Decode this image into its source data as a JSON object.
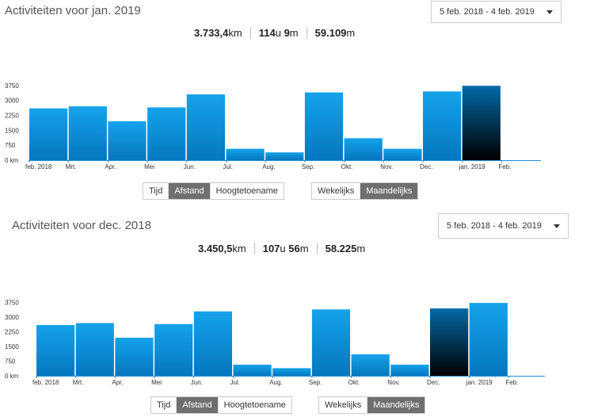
{
  "panels": [
    {
      "title": "Activiteiten voor jan. 2019",
      "date_range": "5 feb. 2018 - 4 feb. 2019",
      "stats": [
        {
          "value": "3.733,4",
          "unit": "km"
        },
        {
          "value": "114",
          "unit": "u",
          "value2": "9",
          "unit2": "m"
        },
        {
          "value": "59.109",
          "unit": "m"
        }
      ],
      "metric_buttons": [
        "Tijd",
        "Afstand",
        "Hoogtetoename"
      ],
      "metric_active": 1,
      "period_buttons": [
        "Wekelijks",
        "Maandelijks"
      ],
      "period_active": 1
    },
    {
      "title": "Activiteiten voor dec. 2018",
      "date_range": "5 feb. 2018 - 4 feb. 2019",
      "stats": [
        {
          "value": "3.450,5",
          "unit": "km"
        },
        {
          "value": "107",
          "unit": "u",
          "value2": "56",
          "unit2": "m"
        },
        {
          "value": "58.225",
          "unit": "m"
        }
      ],
      "metric_buttons": [
        "Tijd",
        "Afstand",
        "Hoogtetoename"
      ],
      "metric_active": 1,
      "period_buttons": [
        "Wekelijks",
        "Maandelijks"
      ],
      "period_active": 1
    }
  ],
  "colors": {
    "bar": "#0b8fd6",
    "bar_gradient_top": "#15a3ea",
    "bar_gradient_bottom": "#0577bf",
    "bar_selected_top": "#046aa8",
    "bar_selected_bottom": "#000000",
    "axis": "#1a8fd1",
    "button_active_bg": "#6f6f6f"
  },
  "icons": {
    "date_range_dropdown": "caret-down-icon"
  },
  "chart_data": [
    {
      "type": "bar",
      "categories": [
        "feb. 2018",
        "Mrt.",
        "Apr.",
        "Mei",
        "Jun.",
        "Jul.",
        "Aug.",
        "Sep.",
        "Okt.",
        "Nov.",
        "Dec.",
        "jan. 2019"
      ],
      "x_tick_labels": [
        "feb. 2018",
        "Mrt.",
        "Apr.",
        "Mei",
        "Jun.",
        "Jul.",
        "Aug.",
        "Sep.",
        "Okt.",
        "Nov.",
        "Dec.",
        "jan. 2019",
        "Feb."
      ],
      "values": [
        2600,
        2700,
        1950,
        2650,
        3300,
        570,
        390,
        3400,
        1100,
        570,
        3450,
        3733
      ],
      "selected_index": 11,
      "y_ticks": [
        "0 km",
        "750",
        "1500",
        "2250",
        "3000",
        "3750"
      ],
      "ylim": [
        0,
        3900
      ],
      "unit": "km"
    },
    {
      "type": "bar",
      "categories": [
        "feb. 2018",
        "Mrt.",
        "Apr.",
        "Mei",
        "Jun.",
        "Jul.",
        "Aug.",
        "Sep.",
        "Okt.",
        "Nov.",
        "Dec.",
        "jan. 2019"
      ],
      "x_tick_labels": [
        "feb. 2018",
        "Mrt.",
        "Apr.",
        "Mei",
        "Jun.",
        "Jul.",
        "Aug.",
        "Sep.",
        "Okt.",
        "Nov.",
        "Dec.",
        "jan. 2019",
        "Feb."
      ],
      "values": [
        2600,
        2700,
        1950,
        2650,
        3300,
        570,
        390,
        3400,
        1100,
        570,
        3450,
        3733
      ],
      "selected_index": 10,
      "y_ticks": [
        "0 km",
        "750",
        "1500",
        "2250",
        "3000",
        "3750"
      ],
      "ylim": [
        0,
        3900
      ],
      "unit": "km"
    }
  ]
}
